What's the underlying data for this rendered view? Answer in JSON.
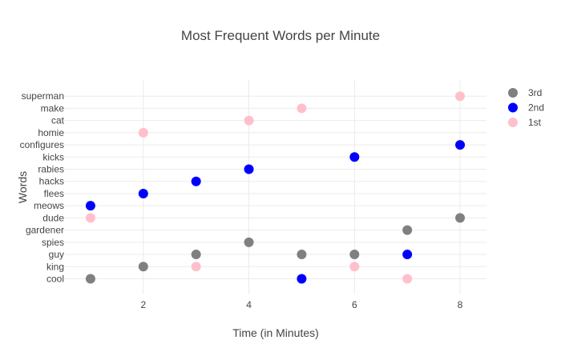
{
  "chart_data": {
    "type": "scatter",
    "title": "Most Frequent Words per Minute",
    "xlabel": "Time (in Minutes)",
    "ylabel": "Words",
    "xlim": [
      0.5,
      8.5
    ],
    "x_ticks": [
      2,
      4,
      6,
      8
    ],
    "categories": [
      "cool",
      "king",
      "guy",
      "spies",
      "gardener",
      "dude",
      "meows",
      "flees",
      "hacks",
      "rabies",
      "kicks",
      "configures",
      "homie",
      "cat",
      "make",
      "superman"
    ],
    "grid": true,
    "legend_position": "top-right",
    "series": [
      {
        "name": "3rd",
        "color": "#808080",
        "points": [
          {
            "x": 1,
            "y": "cool"
          },
          {
            "x": 2,
            "y": "king"
          },
          {
            "x": 3,
            "y": "guy"
          },
          {
            "x": 4,
            "y": "spies"
          },
          {
            "x": 5,
            "y": "guy"
          },
          {
            "x": 6,
            "y": "guy"
          },
          {
            "x": 7,
            "y": "gardener"
          },
          {
            "x": 8,
            "y": "dude"
          }
        ]
      },
      {
        "name": "2nd",
        "color": "#0000ff",
        "points": [
          {
            "x": 1,
            "y": "meows"
          },
          {
            "x": 2,
            "y": "flees"
          },
          {
            "x": 3,
            "y": "hacks"
          },
          {
            "x": 4,
            "y": "rabies"
          },
          {
            "x": 5,
            "y": "cool"
          },
          {
            "x": 6,
            "y": "kicks"
          },
          {
            "x": 7,
            "y": "guy"
          },
          {
            "x": 8,
            "y": "configures"
          }
        ]
      },
      {
        "name": "1st",
        "color": "#ffc0cb",
        "points": [
          {
            "x": 1,
            "y": "dude"
          },
          {
            "x": 2,
            "y": "homie"
          },
          {
            "x": 3,
            "y": "king"
          },
          {
            "x": 4,
            "y": "cat"
          },
          {
            "x": 5,
            "y": "make"
          },
          {
            "x": 6,
            "y": "king"
          },
          {
            "x": 7,
            "y": "cool"
          },
          {
            "x": 8,
            "y": "superman"
          }
        ]
      }
    ]
  }
}
